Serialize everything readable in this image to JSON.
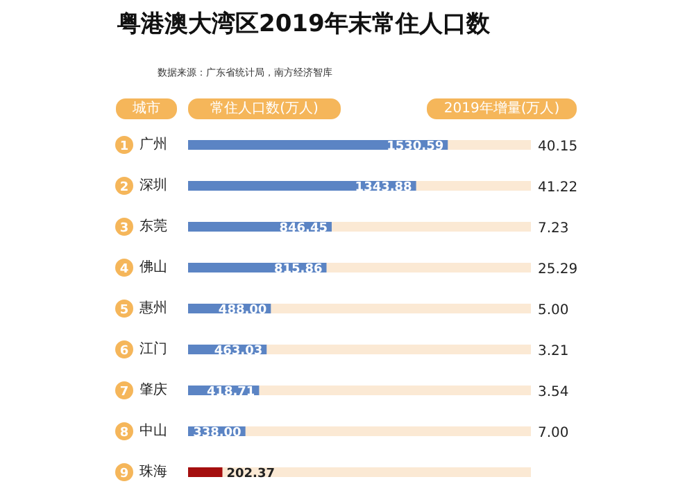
{
  "chart_data": {
    "type": "bar",
    "orientation": "horizontal",
    "title": "粤港澳大湾区2019年末常住人口数",
    "ylabel": "城市",
    "categories": [
      "广州",
      "深圳",
      "东莞",
      "佛山",
      "惠州",
      "江门",
      "肇庆",
      "中山",
      "珠海"
    ],
    "series": [
      {
        "name": "常住人口数(万人)",
        "colors": [
          "#5b84c4",
          "#5b84c4",
          "#5b84c4",
          "#5b84c4",
          "#5b84c4",
          "#5b84c4",
          "#5b84c4",
          "#5b84c4",
          "#a50f0f"
        ],
        "values": [
          1530.59,
          1343.88,
          846.45,
          815.86,
          488.0,
          463.03,
          418.71,
          338.0,
          202.37
        ],
        "value_labels": [
          "1530.59",
          "1343.88",
          "846.45",
          "815.86",
          "488.00",
          "463.03",
          "418.71",
          "338.00",
          "202.37"
        ]
      }
    ],
    "tick_labels": false,
    "data_labels": true,
    "annotations": [
      "数据来源：广东省统计局，南方经济智库",
      "1",
      "2",
      "3",
      "4",
      "5",
      "6",
      "7",
      "8",
      "9",
      "2019年增量(万人)",
      "40.15",
      "41.22",
      "7.23",
      "25.29",
      "5.00",
      "3.21",
      "3.54",
      "7.00"
    ]
  }
}
